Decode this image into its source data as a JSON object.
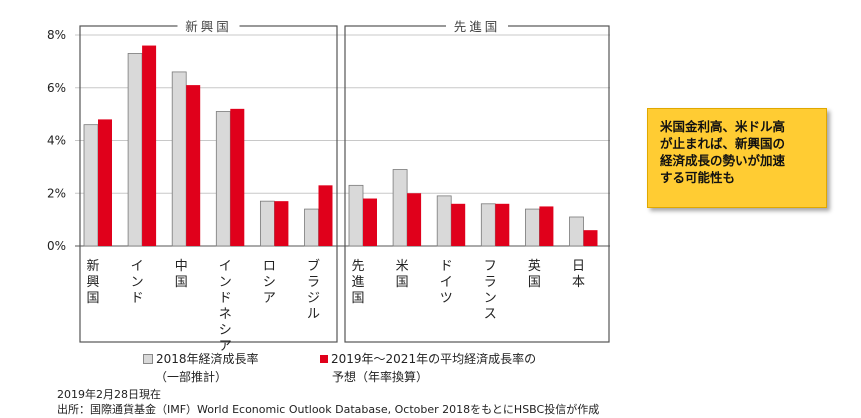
{
  "chart_data": {
    "type": "bar",
    "title": "",
    "xlabel": "",
    "ylabel": "",
    "ylim": [
      0,
      8
    ],
    "y_ticks": [
      "0%",
      "2%",
      "4%",
      "6%",
      "8%"
    ],
    "grid": true,
    "groups": [
      {
        "label": "新興国",
        "categories": [
          "新興国",
          "インド",
          "中国",
          "インドネシア",
          "ロシア",
          "ブラジル"
        ]
      },
      {
        "label": "先進国",
        "categories": [
          "先進国",
          "米国",
          "ドイツ",
          "フランス",
          "英国",
          "日本"
        ]
      }
    ],
    "categories": [
      "新興国",
      "インド",
      "中国",
      "インドネシア",
      "ロシア",
      "ブラジル",
      "先進国",
      "米国",
      "ドイツ",
      "フランス",
      "英国",
      "日本"
    ],
    "series": [
      {
        "name": "2018年経済成長率（一部推計）",
        "color": "#d9d9d9",
        "values": [
          4.6,
          7.3,
          6.6,
          5.1,
          1.7,
          1.4,
          2.3,
          2.9,
          1.9,
          1.6,
          1.4,
          1.1
        ]
      },
      {
        "name": "2019年～2021年の平均経済成長率の予想（年率換算）",
        "color": "#e0001b",
        "values": [
          4.8,
          7.6,
          6.1,
          5.2,
          1.7,
          2.3,
          1.8,
          2.0,
          1.6,
          1.6,
          1.5,
          0.6
        ]
      }
    ]
  },
  "legend": {
    "item1_line1": "2018年経済成長率",
    "item1_line2": "（一部推計）",
    "item2_line1": "2019年～2021年の平均経済成長率の",
    "item2_line2": "予想（年率換算）"
  },
  "callout_lines": [
    "米国金利高、米ドル高",
    "が止まれば、新興国の",
    "経済成長の勢いが加速",
    "する可能性も"
  ],
  "notes": {
    "date": "2019年2月28日現在",
    "source": "出所：国際通貨基金（IMF）World Economic Outlook Database, October 2018をもとにHSBC投信が作成"
  }
}
